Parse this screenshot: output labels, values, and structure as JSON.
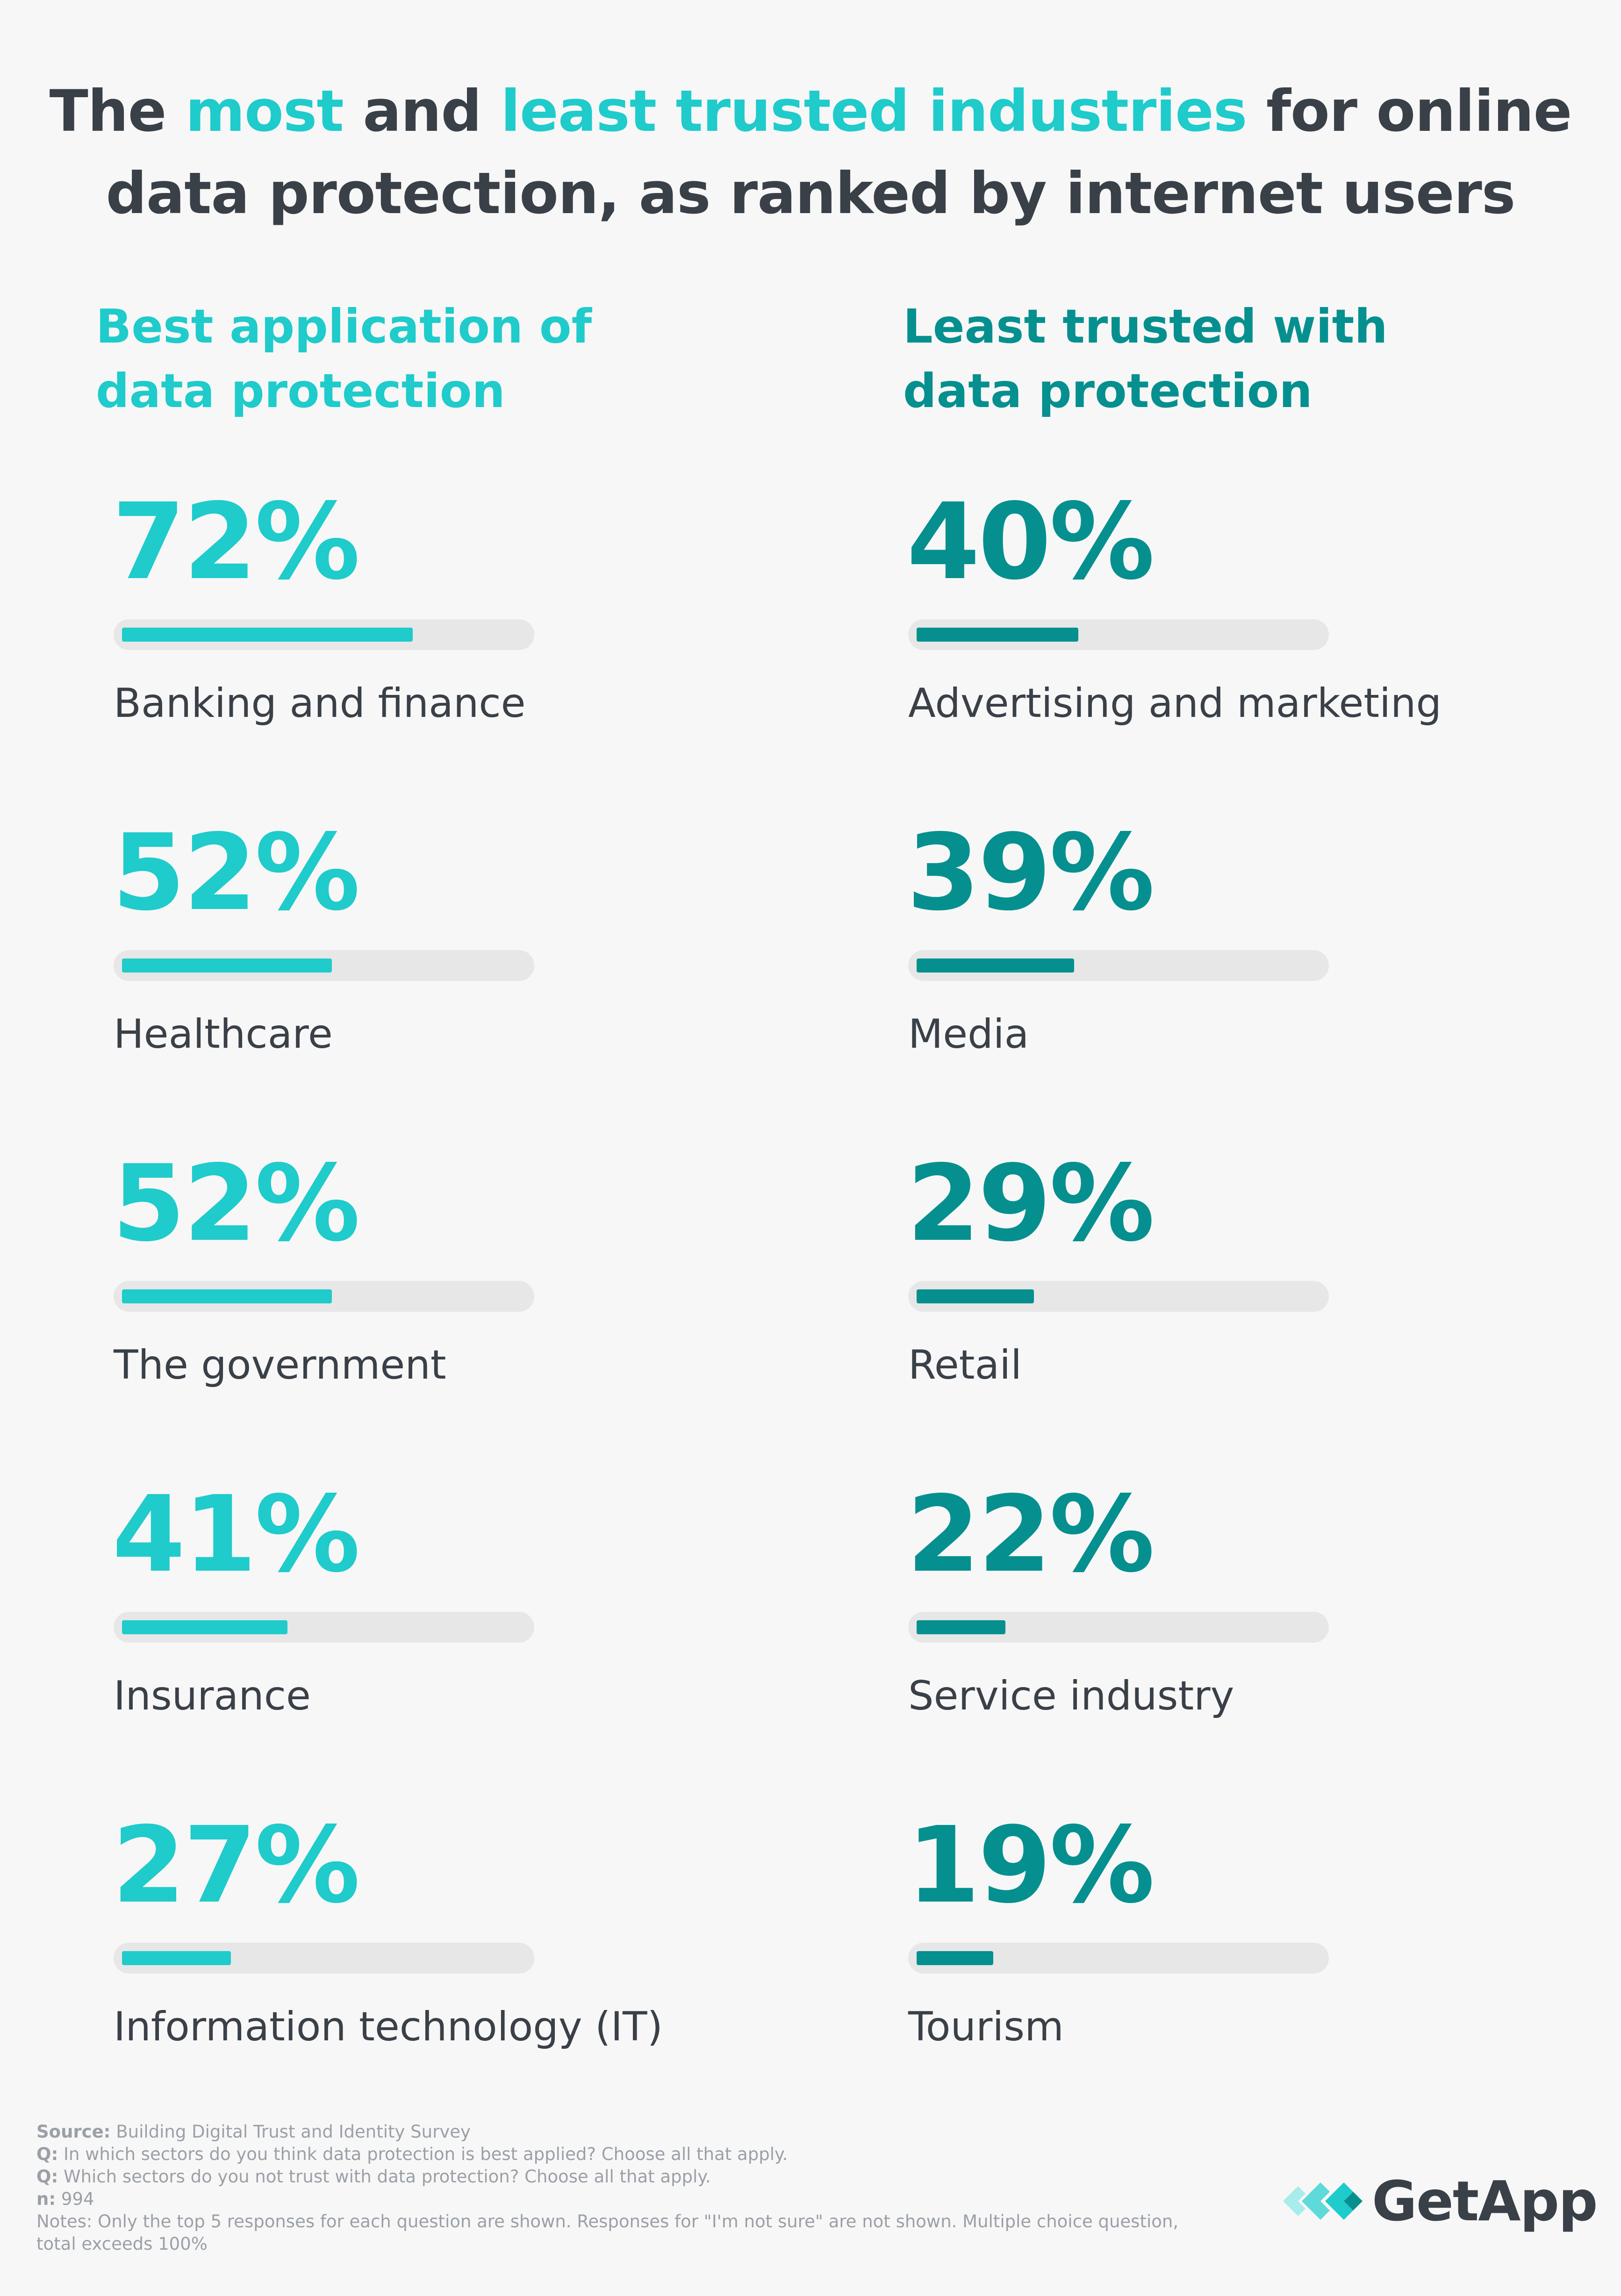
{
  "title": {
    "part1": "The ",
    "most": "most",
    "and": " and ",
    "least": "least trusted industries",
    "line1_end": " for online",
    "line2": "data protection, as ranked by internet users"
  },
  "chart_data": [
    {
      "type": "bar",
      "title": "Best application of data protection",
      "title_line1": "Best application of",
      "title_line2": "data protection",
      "categories": [
        "Banking and finance",
        "Healthcare",
        "The government",
        "Insurance",
        "Information technology (IT)"
      ],
      "values": [
        72,
        52,
        52,
        41,
        27
      ],
      "value_labels": [
        "72%",
        "52%",
        "52%",
        "41%",
        "27%"
      ],
      "ylim": [
        0,
        100
      ],
      "color": "#1fcbcb"
    },
    {
      "type": "bar",
      "title": "Least trusted with data protection",
      "title_line1": "Least trusted with",
      "title_line2": "data protection",
      "categories": [
        "Advertising and marketing",
        "Media",
        "Retail",
        "Service industry",
        "Tourism"
      ],
      "values": [
        40,
        39,
        29,
        22,
        19
      ],
      "value_labels": [
        "40%",
        "39%",
        "29%",
        "22%",
        "19%"
      ],
      "ylim": [
        0,
        100
      ],
      "color": "#05908f"
    }
  ],
  "footnotes": {
    "source_label": "Source:",
    "source_text": " Building Digital Trust and Identity Survey",
    "q1_label": "Q:",
    "q1_text": " In which sectors do you think data protection is best applied? Choose all that apply.",
    "q2_label": "Q:",
    "q2_text": " Which sectors do you not trust with data protection? Choose all that apply.",
    "n_label": "n:",
    "n_text": " 994",
    "notes_text": "Notes: Only the top 5 responses for each question are shown. Responses for \"I'm not sure\" are not shown. Multiple choice question, total exceeds 100%"
  },
  "logo": {
    "text": "GetApp",
    "icon": "getapp-chevrons-icon"
  }
}
